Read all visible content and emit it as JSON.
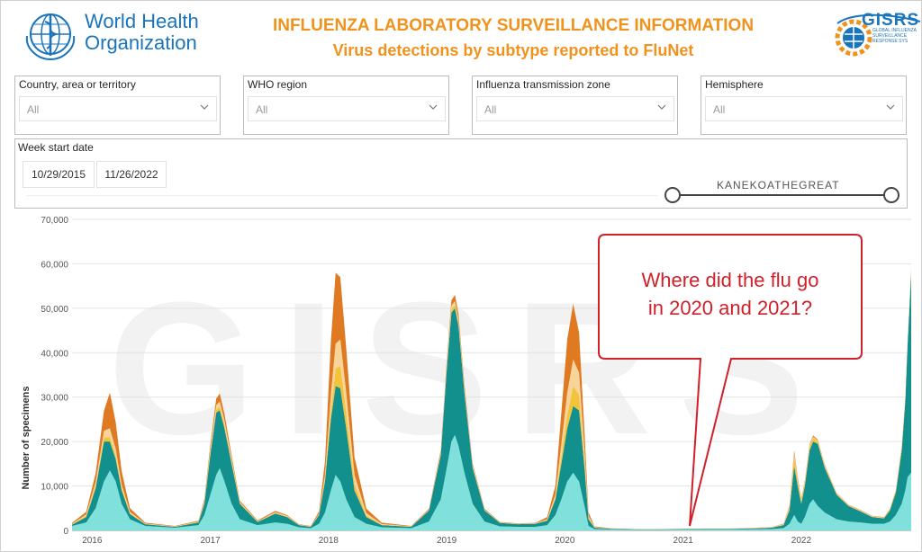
{
  "header": {
    "org_line1": "World Health",
    "org_line2": "Organization",
    "title": "INFLUENZA LABORATORY SURVEILLANCE INFORMATION",
    "subtitle": "Virus detections by subtype reported to FluNet",
    "gisrs_word": "GISRS",
    "gisrs_small": [
      "GLOBAL INFLUENZA",
      "SURVEILLANCE",
      "RESPONSE SYS"
    ]
  },
  "filters": [
    {
      "label": "Country, area or territory",
      "value": "All"
    },
    {
      "label": "WHO region",
      "value": "All"
    },
    {
      "label": "Influenza transmission zone",
      "value": "All"
    },
    {
      "label": "Hemisphere",
      "value": "All"
    }
  ],
  "date_filter": {
    "label": "Week start date",
    "start": "10/29/2015",
    "end": "11/26/2022",
    "slider_text": "KANEKOATHEGREAT"
  },
  "callout": {
    "line1": "Where did the flu go",
    "line2": "in 2020 and 2021?"
  },
  "colors": {
    "title_orange": "#f0931e",
    "who_blue": "#1a75bc",
    "teal_dark": "#12908e",
    "teal_light": "#7fe0dc",
    "orange": "#e07a22",
    "cream": "#f7d49a",
    "yellow": "#f3c33a",
    "callout_red": "#d0202a"
  },
  "chart_data": {
    "type": "area",
    "ylabel": "Number of specimens",
    "ylim": [
      0,
      70000
    ],
    "yticks": [
      0,
      10000,
      20000,
      30000,
      40000,
      50000,
      60000,
      70000
    ],
    "ytick_labels": [
      "0",
      "10,000",
      "20,000",
      "30,000",
      "40,000",
      "50,000",
      "60,000",
      "70,000"
    ],
    "xlim": [
      2015.83,
      2022.93
    ],
    "xticks": [
      2016,
      2017,
      2018,
      2019,
      2020,
      2021,
      2022
    ],
    "xtick_labels": [
      "2016",
      "2017",
      "2018",
      "2019",
      "2020",
      "2021",
      "2022"
    ],
    "x": [
      2015.83,
      2015.95,
      2016.03,
      2016.1,
      2016.15,
      2016.2,
      2016.25,
      2016.32,
      2016.45,
      2016.7,
      2016.9,
      2016.95,
      2017.0,
      2017.05,
      2017.08,
      2017.12,
      2017.18,
      2017.25,
      2017.4,
      2017.55,
      2017.65,
      2017.75,
      2017.85,
      2017.92,
      2017.97,
      2018.02,
      2018.06,
      2018.1,
      2018.15,
      2018.22,
      2018.32,
      2018.45,
      2018.7,
      2018.85,
      2018.95,
      2019.0,
      2019.04,
      2019.07,
      2019.1,
      2019.15,
      2019.22,
      2019.32,
      2019.45,
      2019.6,
      2019.75,
      2019.85,
      2019.92,
      2019.97,
      2020.02,
      2020.07,
      2020.12,
      2020.17,
      2020.2,
      2020.25,
      2020.4,
      2020.6,
      2020.8,
      2021.0,
      2021.2,
      2021.4,
      2021.6,
      2021.75,
      2021.85,
      2021.9,
      2021.94,
      2021.97,
      2022.0,
      2022.03,
      2022.07,
      2022.1,
      2022.14,
      2022.2,
      2022.3,
      2022.4,
      2022.5,
      2022.6,
      2022.7,
      2022.75,
      2022.8,
      2022.85,
      2022.88,
      2022.9,
      2022.93
    ],
    "series": [
      {
        "values": [
          1000,
          1800,
          5000,
          11000,
          13500,
          11000,
          6000,
          2500,
          1000,
          600,
          1200,
          3500,
          8000,
          12500,
          14000,
          11000,
          6000,
          2500,
          1200,
          1800,
          1500,
          700,
          500,
          1500,
          4000,
          9000,
          12500,
          11000,
          7000,
          3000,
          1500,
          700,
          500,
          2000,
          7000,
          14000,
          20000,
          21500,
          19000,
          13000,
          6000,
          2000,
          900,
          800,
          800,
          1200,
          3500,
          7000,
          11000,
          13000,
          11000,
          5000,
          1000,
          300,
          200,
          150,
          150,
          200,
          200,
          200,
          250,
          300,
          500,
          1500,
          3500,
          2000,
          1500,
          3000,
          6000,
          7000,
          5500,
          4000,
          2500,
          2000,
          1800,
          1500,
          1500,
          2000,
          3500,
          6000,
          9000,
          12000,
          13000
        ]
      },
      {
        "values": [
          300,
          1200,
          4500,
          9000,
          6500,
          5000,
          3000,
          1200,
          400,
          200,
          600,
          2500,
          9000,
          14000,
          13000,
          12000,
          9000,
          3500,
          700,
          2000,
          1500,
          500,
          300,
          2000,
          7000,
          16000,
          20000,
          21000,
          16000,
          6000,
          1500,
          500,
          300,
          2500,
          10000,
          22000,
          29000,
          28500,
          27000,
          18000,
          8000,
          2500,
          800,
          600,
          700,
          1000,
          3500,
          8000,
          12000,
          15000,
          16000,
          8000,
          1500,
          300,
          150,
          100,
          100,
          100,
          150,
          150,
          200,
          300,
          700,
          3000,
          11000,
          8000,
          4500,
          7000,
          12000,
          13000,
          14000,
          10000,
          5500,
          3500,
          2500,
          1500,
          1200,
          2500,
          5000,
          12000,
          20000,
          30000,
          45000
        ]
      },
      {
        "values": [
          100,
          300,
          600,
          900,
          1000,
          800,
          500,
          200,
          50,
          50,
          100,
          300,
          500,
          700,
          800,
          700,
          500,
          200,
          50,
          100,
          100,
          50,
          50,
          100,
          500,
          2000,
          4000,
          5000,
          3500,
          1500,
          400,
          100,
          50,
          100,
          300,
          600,
          800,
          800,
          700,
          500,
          300,
          100,
          50,
          50,
          50,
          100,
          300,
          1500,
          3000,
          4500,
          3500,
          1500,
          300,
          50,
          20,
          20,
          20,
          20,
          20,
          20,
          30,
          50,
          100,
          500,
          2000,
          1000,
          600,
          600,
          800,
          800,
          500,
          300,
          200,
          100,
          100,
          100,
          100,
          200,
          500,
          800,
          800,
          800,
          800
        ]
      },
      {
        "values": [
          100,
          300,
          800,
          1500,
          2000,
          1500,
          800,
          300,
          100,
          50,
          100,
          300,
          800,
          1000,
          1200,
          1000,
          600,
          200,
          100,
          200,
          150,
          50,
          50,
          200,
          1000,
          3500,
          5500,
          6000,
          4500,
          2000,
          500,
          150,
          50,
          100,
          300,
          600,
          800,
          800,
          700,
          500,
          300,
          100,
          50,
          50,
          50,
          200,
          800,
          3000,
          5000,
          6000,
          5000,
          2000,
          500,
          100,
          30,
          30,
          30,
          30,
          30,
          30,
          50,
          50,
          150,
          300,
          700,
          400,
          300,
          300,
          300,
          300,
          200,
          200,
          100,
          100,
          100,
          100,
          100,
          100,
          100,
          100,
          100,
          100,
          100
        ]
      },
      {
        "values": [
          200,
          600,
          2000,
          4500,
          8000,
          6000,
          3000,
          800,
          200,
          100,
          200,
          500,
          1000,
          1500,
          1800,
          1500,
          800,
          300,
          200,
          300,
          200,
          100,
          100,
          500,
          3000,
          12000,
          16000,
          14000,
          10000,
          4000,
          1000,
          300,
          100,
          200,
          500,
          800,
          1200,
          1400,
          1200,
          800,
          400,
          200,
          100,
          100,
          100,
          500,
          2000,
          7000,
          12000,
          12500,
          9000,
          3500,
          800,
          150,
          50,
          30,
          30,
          30,
          30,
          30,
          50,
          50,
          100,
          300,
          800,
          500,
          300,
          300,
          300,
          300,
          200,
          200,
          100,
          100,
          100,
          100,
          100,
          100,
          100,
          100,
          100,
          100,
          100
        ]
      }
    ]
  }
}
